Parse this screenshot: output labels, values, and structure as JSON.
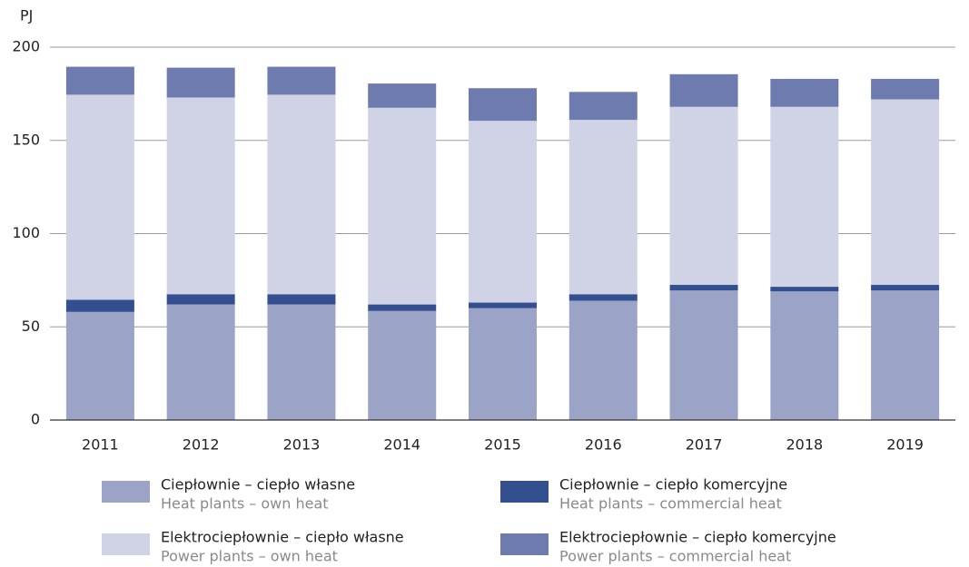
{
  "chart_data": {
    "type": "stacked_bar",
    "y_label": "PJ",
    "categories": [
      "2011",
      "2012",
      "2013",
      "2014",
      "2015",
      "2016",
      "2017",
      "2018",
      "2019"
    ],
    "series": [
      {
        "name": "Ciepłownie – ciepło własne",
        "name_en": "Heat plants – own heat",
        "color": "#9ba3c6",
        "values": [
          58,
          62,
          62,
          58.5,
          60,
          64,
          69.5,
          69,
          69.5
        ]
      },
      {
        "name": "Ciepłownie – ciepło komercyjne",
        "name_en": "Heat plants – commercial heat",
        "color": "#344f8f",
        "values": [
          6.5,
          5.5,
          5.5,
          3.5,
          3,
          3.5,
          3,
          2.5,
          3
        ]
      },
      {
        "name": "Elektrociepłownie – ciepło własne",
        "name_en": "Power plants – own heat",
        "color": "#d0d3e6",
        "values": [
          110,
          105.5,
          107,
          105.5,
          97.5,
          93.5,
          95.5,
          96.5,
          99.5
        ]
      },
      {
        "name": "Elektrociepłownie – ciepło komercyjne",
        "name_en": "Power plants – commercial heat",
        "color": "#6e7bae",
        "values": [
          15,
          16,
          15,
          13,
          17.5,
          15,
          17.5,
          15,
          11
        ]
      }
    ],
    "ylim": [
      0,
      200
    ],
    "yticks": [
      0,
      50,
      100,
      150,
      200
    ],
    "grid": true
  }
}
